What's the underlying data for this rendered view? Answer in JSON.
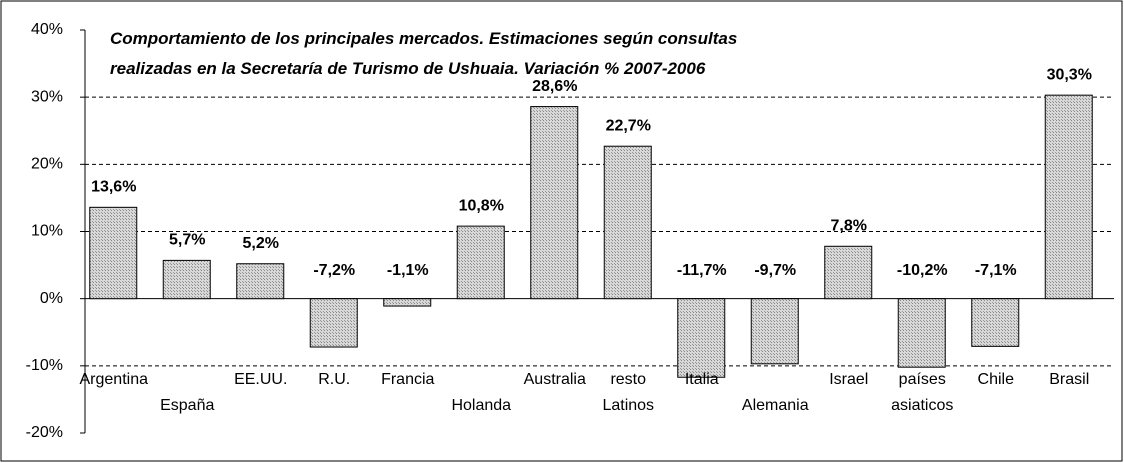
{
  "chart_data": {
    "type": "bar",
    "title": [
      "Comportamiento de los principales mercados. Estimaciones según consultas",
      "realizadas en la Secretaría de Turismo de Ushuaia. Variación % 2007-2006"
    ],
    "categories": [
      "Argentina",
      "España",
      "EE.UU.",
      "R.U.",
      "Francia",
      "Holanda",
      "Australia",
      "resto Latinos",
      "Italia",
      "Alemania",
      "Israel",
      "países asiaticos",
      "Chile",
      "Brasil"
    ],
    "values": [
      13.6,
      5.7,
      5.2,
      -7.2,
      -1.1,
      10.8,
      28.6,
      22.7,
      -11.7,
      -9.7,
      7.8,
      -10.2,
      -7.1,
      30.3
    ],
    "value_labels": [
      "13,6%",
      "5,7%",
      "5,2%",
      "-7,2%",
      "-1,1%",
      "10,8%",
      "28,6%",
      "22,7%",
      "-11,7%",
      "-9,7%",
      "7,8%",
      "-10,2%",
      "-7,1%",
      "30,3%"
    ],
    "color": "#c4c4c4",
    "ylim": [
      -20,
      40
    ],
    "yticks": [
      {
        "value": -20,
        "label": "-20%"
      },
      {
        "value": -10,
        "label": "-10%"
      },
      {
        "value": 0,
        "label": "0%"
      },
      {
        "value": 10,
        "label": "10%"
      },
      {
        "value": 20,
        "label": "20%"
      },
      {
        "value": 30,
        "label": "30%"
      },
      {
        "value": 40,
        "label": "40%"
      }
    ],
    "grid": true
  }
}
